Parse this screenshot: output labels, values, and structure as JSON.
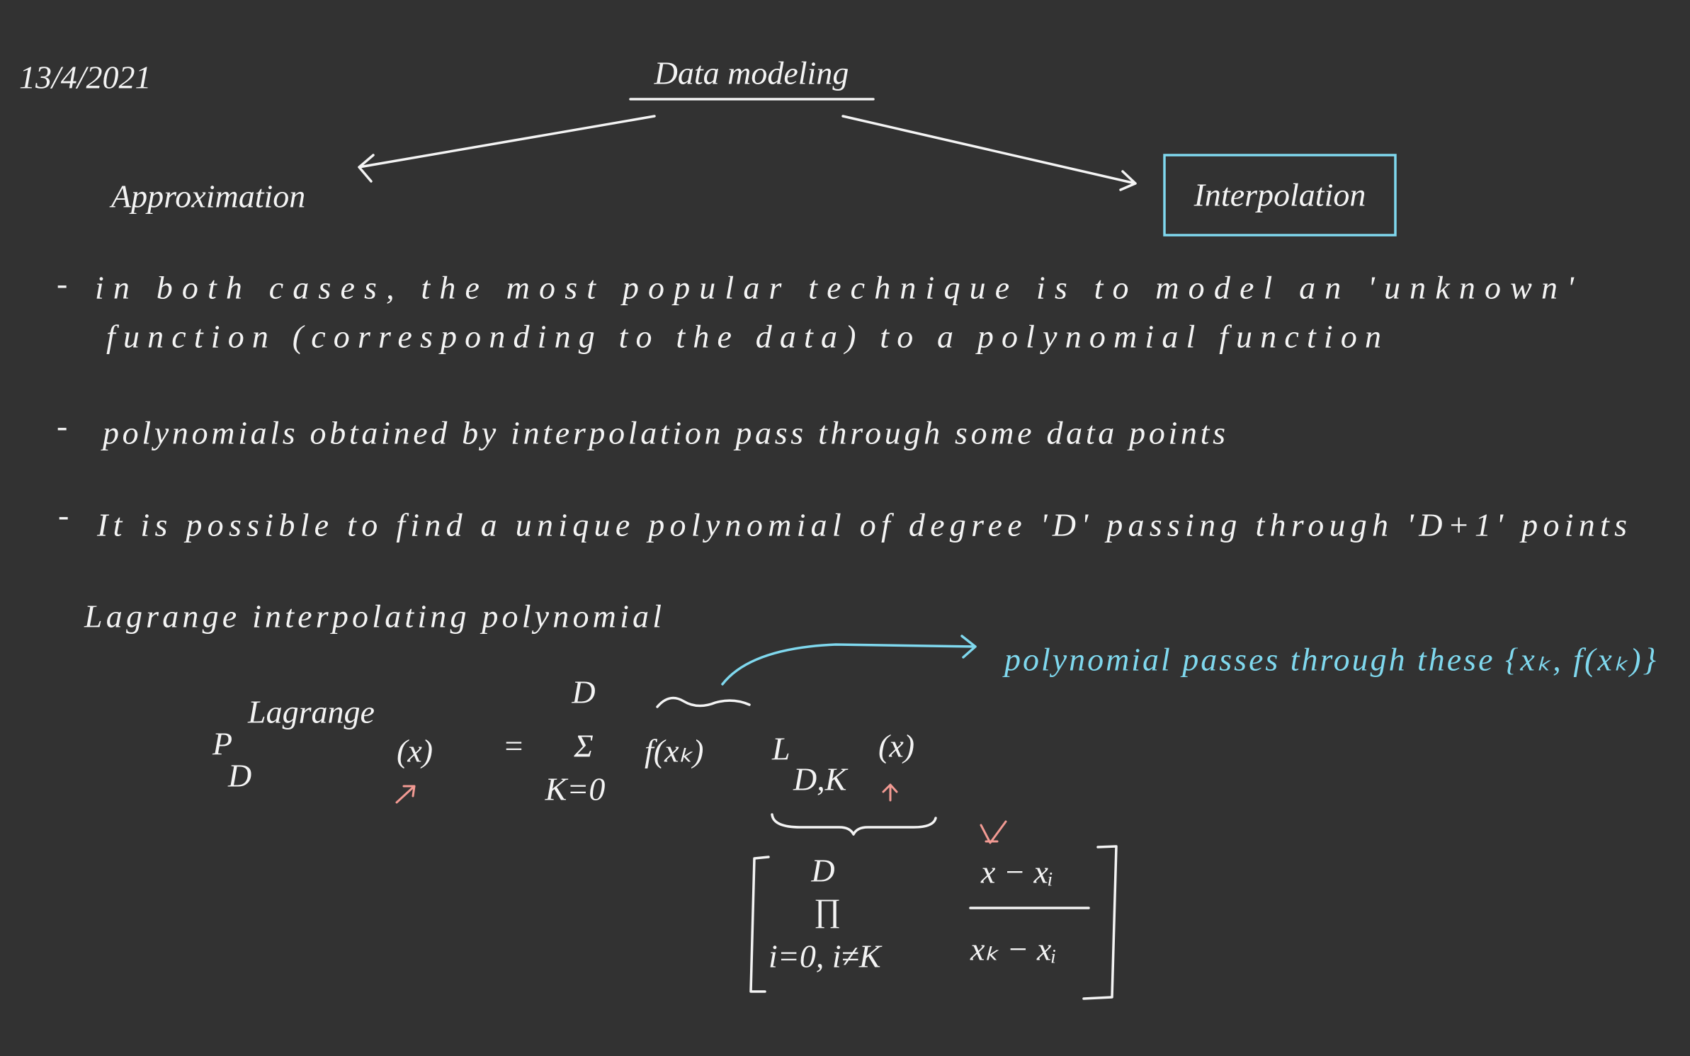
{
  "header": {
    "date": "13/4/2021",
    "title": "Data modeling"
  },
  "branches": [
    "Approximation",
    "Interpolation"
  ],
  "bullets": [
    {
      "dash": "-",
      "lines": [
        "in both cases, the most popular technique is to model an 'unknown'",
        "function (corresponding to the data) to a polynomial function"
      ]
    },
    {
      "dash": "-",
      "lines": [
        "polynomials obtained by interpolation pass through some data points"
      ]
    },
    {
      "dash": "-",
      "lines": [
        "It is possible to find a unique polynomial of degree 'D' passing through 'D+1' points"
      ]
    }
  ],
  "section": "Lagrange interpolating polynomial",
  "formula": {
    "p": "P",
    "p_sup": "Lagrange",
    "p_sub": "D",
    "p_arg": "(x)",
    "equals": "=",
    "sum_upper": "D",
    "sum": "Σ",
    "sum_lower": "K=0",
    "f": "f(xₖ)",
    "l": "L",
    "l_sub": "D,K",
    "l_arg": "(x)",
    "prod_upper": "D",
    "prod": "∏",
    "prod_lower": "i=0, i≠K",
    "numerator": "x − xᵢ",
    "denominator": "xₖ − xᵢ"
  },
  "annotation": "polynomial passes through these {xₖ, f(xₖ)}"
}
